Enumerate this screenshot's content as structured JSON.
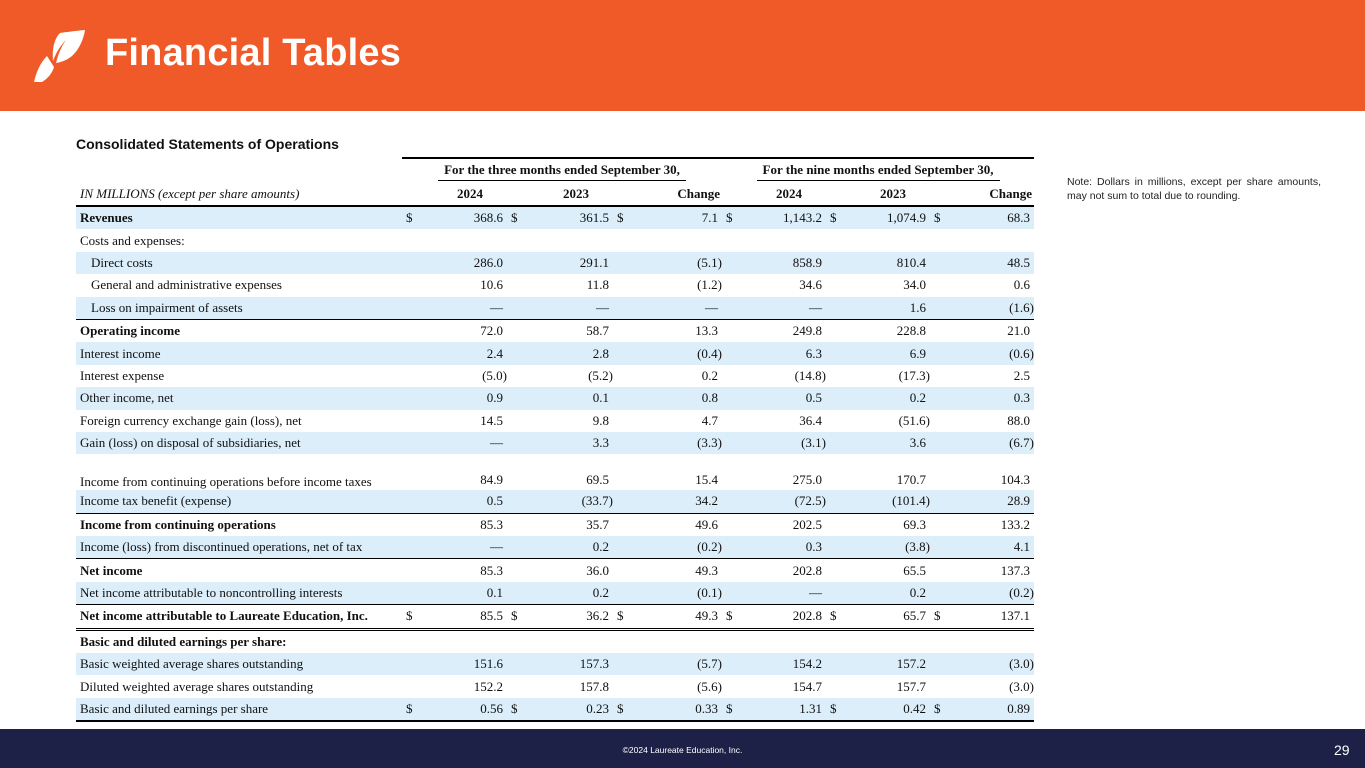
{
  "header": {
    "title": "Financial Tables",
    "brand_color": "#f05a28",
    "logo_icon": "leaf-icon"
  },
  "subtitle": "Consolidated  Statements  of  Operations",
  "note": "Note:    Dollars  in  millions,  except  per  share amounts,  may not sum to total due to rounding.",
  "table": {
    "group_headers": [
      "For the three  months  ended September 30,",
      "For the nine  months  ended September 30,"
    ],
    "label_header": "IN MILLIONS  (except per share amounts)",
    "column_headers": [
      "2024",
      "2023",
      "Change",
      "2024",
      "2023",
      "Change"
    ],
    "shade_color": "#dbeefa",
    "rows": [
      {
        "label": "Revenues",
        "style": "bold",
        "shade": true,
        "dollar": true,
        "values": [
          "368.6",
          "361.5",
          "7.1",
          "1,143.2",
          "1,074.9",
          "68.3"
        ]
      },
      {
        "label": "Costs and expenses:",
        "values": [
          "",
          "",
          "",
          "",
          "",
          ""
        ]
      },
      {
        "label": "Direct costs",
        "indent": true,
        "shade": true,
        "values": [
          "286.0",
          "291.1",
          "(5.1)",
          "858.9",
          "810.4",
          "48.5"
        ]
      },
      {
        "label": "General and administrative expenses",
        "indent": true,
        "values": [
          "10.6",
          "11.8",
          "(1.2)",
          "34.6",
          "34.0",
          "0.6"
        ]
      },
      {
        "label": "Loss on impairment of assets",
        "indent": true,
        "shade": true,
        "values": [
          "—",
          "—",
          "—",
          "—",
          "1.6",
          "(1.6)"
        ]
      },
      {
        "label": "Operating income",
        "style": "bold",
        "topline": true,
        "values": [
          "72.0",
          "58.7",
          "13.3",
          "249.8",
          "228.8",
          "21.0"
        ]
      },
      {
        "label": "Interest income",
        "shade": true,
        "values": [
          "2.4",
          "2.8",
          "(0.4)",
          "6.3",
          "6.9",
          "(0.6)"
        ]
      },
      {
        "label": "Interest expense",
        "values": [
          "(5.0)",
          "(5.2)",
          "0.2",
          "(14.8)",
          "(17.3)",
          "2.5"
        ]
      },
      {
        "label": "Other income, net",
        "shade": true,
        "values": [
          "0.9",
          "0.1",
          "0.8",
          "0.5",
          "0.2",
          "0.3"
        ]
      },
      {
        "label": "Foreign currency exchange gain (loss), net",
        "values": [
          "14.5",
          "9.8",
          "4.7",
          "36.4",
          "(51.6)",
          "88.0"
        ]
      },
      {
        "label": "Gain (loss) on disposal of subsidiaries, net",
        "shade": true,
        "values": [
          "—",
          "3.3",
          "(3.3)",
          "(3.1)",
          "3.6",
          "(6.7)"
        ]
      },
      {
        "label": "Income  from continuing  operations before income taxes",
        "tall": true,
        "values": [
          "84.9",
          "69.5",
          "15.4",
          "275.0",
          "170.7",
          "104.3"
        ]
      },
      {
        "label": "Income tax benefit (expense)",
        "shade": true,
        "values": [
          "0.5",
          "(33.7)",
          "34.2",
          "(72.5)",
          "(101.4)",
          "28.9"
        ]
      },
      {
        "label": "Income  from continuing  operations",
        "style": "bold",
        "topline": true,
        "values": [
          "85.3",
          "35.7",
          "49.6",
          "202.5",
          "69.3",
          "133.2"
        ]
      },
      {
        "label": "Income  (loss) from discontinued operations, net of tax",
        "shade": true,
        "values": [
          "—",
          "0.2",
          "(0.2)",
          "0.3",
          "(3.8)",
          "4.1"
        ]
      },
      {
        "label": "Net income",
        "style": "bold",
        "topline": true,
        "values": [
          "85.3",
          "36.0",
          "49.3",
          "202.8",
          "65.5",
          "137.3"
        ]
      },
      {
        "label": "Net income attributable to noncontrolling  interests",
        "shade": true,
        "values": [
          "0.1",
          "0.2",
          "(0.1)",
          "—",
          "0.2",
          "(0.2)"
        ]
      },
      {
        "label": "Net income  attributable  to Laureate  Education,  Inc.",
        "style": "bold",
        "topline": true,
        "dbl": true,
        "dollar": true,
        "values": [
          "85.5",
          "36.2",
          "49.3",
          "202.8",
          "65.7",
          "137.1"
        ]
      },
      {
        "label": "Basic  and diluted  earnings  per share:",
        "style": "bold",
        "values": [
          "",
          "",
          "",
          "",
          "",
          ""
        ]
      },
      {
        "label": "Basic weighted average shares outstanding",
        "shade": true,
        "values": [
          "151.6",
          "157.3",
          "(5.7)",
          "154.2",
          "157.2",
          "(3.0)"
        ]
      },
      {
        "label": "Diluted weighted average shares outstanding",
        "values": [
          "152.2",
          "157.8",
          "(5.6)",
          "154.7",
          "157.7",
          "(3.0)"
        ]
      },
      {
        "label": "Basic and diluted earnings per share",
        "shade": true,
        "last": true,
        "dollar": true,
        "values": [
          "0.56",
          "0.23",
          "0.33",
          "1.31",
          "0.42",
          "0.89"
        ]
      }
    ]
  },
  "footer": {
    "copyright": "©2024 Laureate Education, Inc.",
    "page_number": "29"
  }
}
